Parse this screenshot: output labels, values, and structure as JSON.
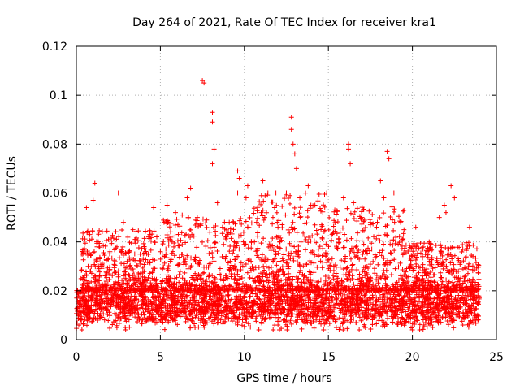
{
  "chart_data": {
    "type": "scatter",
    "title": "Day 264 of 2021, Rate Of TEC Index for receiver kra1",
    "xlabel": "GPS time / hours",
    "ylabel": "ROTI / TECUs",
    "xlim": [
      0,
      25
    ],
    "ylim": [
      0,
      0.12
    ],
    "xticks": [
      0,
      5,
      10,
      15,
      20,
      25
    ],
    "xtick_labels": [
      "0",
      "5",
      "10",
      "15",
      "20",
      "25"
    ],
    "yticks": [
      0,
      0.02,
      0.04,
      0.06,
      0.08,
      0.1,
      0.12
    ],
    "ytick_labels": [
      "0",
      "0.02",
      "0.04",
      "0.06",
      "0.08",
      "0.1",
      "0.12"
    ],
    "grid": true,
    "marker": "+",
    "marker_color": "#ff0000",
    "series": [
      {
        "points": [
          [
            0.2,
            0.012
          ],
          [
            0.5,
            0.018
          ],
          [
            0.6,
            0.054
          ],
          [
            0.8,
            0.043
          ],
          [
            1.0,
            0.057
          ],
          [
            1.1,
            0.064
          ],
          [
            1.3,
            0.04
          ],
          [
            1.5,
            0.03
          ],
          [
            2.0,
            0.036
          ],
          [
            2.5,
            0.06
          ],
          [
            2.8,
            0.048
          ],
          [
            3.5,
            0.041
          ],
          [
            3.8,
            0.035
          ],
          [
            4.3,
            0.042
          ],
          [
            4.6,
            0.054
          ],
          [
            5.0,
            0.036
          ],
          [
            5.4,
            0.055
          ],
          [
            5.9,
            0.052
          ],
          [
            6.3,
            0.051
          ],
          [
            6.6,
            0.058
          ],
          [
            6.8,
            0.062
          ],
          [
            7.2,
            0.05
          ],
          [
            7.5,
            0.106
          ],
          [
            7.6,
            0.105
          ],
          [
            8.1,
            0.093
          ],
          [
            8.1,
            0.089
          ],
          [
            8.2,
            0.078
          ],
          [
            8.1,
            0.072
          ],
          [
            8.4,
            0.056
          ],
          [
            8.7,
            0.046
          ],
          [
            9.1,
            0.048
          ],
          [
            9.4,
            0.04
          ],
          [
            9.6,
            0.069
          ],
          [
            9.7,
            0.066
          ],
          [
            9.6,
            0.06
          ],
          [
            10.2,
            0.063
          ],
          [
            10.1,
            0.058
          ],
          [
            10.6,
            0.04
          ],
          [
            11.0,
            0.052
          ],
          [
            11.1,
            0.065
          ],
          [
            11.4,
            0.06
          ],
          [
            11.7,
            0.05
          ],
          [
            12.0,
            0.046
          ],
          [
            12.5,
            0.06
          ],
          [
            12.8,
            0.091
          ],
          [
            12.8,
            0.086
          ],
          [
            12.9,
            0.08
          ],
          [
            13.0,
            0.076
          ],
          [
            13.1,
            0.07
          ],
          [
            13.3,
            0.058
          ],
          [
            13.8,
            0.063
          ],
          [
            14.2,
            0.055
          ],
          [
            14.6,
            0.047
          ],
          [
            14.9,
            0.06
          ],
          [
            15.3,
            0.044
          ],
          [
            15.9,
            0.058
          ],
          [
            16.2,
            0.08
          ],
          [
            16.2,
            0.078
          ],
          [
            16.3,
            0.072
          ],
          [
            16.5,
            0.056
          ],
          [
            17.0,
            0.05
          ],
          [
            17.5,
            0.047
          ],
          [
            18.1,
            0.065
          ],
          [
            18.3,
            0.058
          ],
          [
            18.5,
            0.077
          ],
          [
            18.6,
            0.074
          ],
          [
            18.9,
            0.06
          ],
          [
            19.5,
            0.045
          ],
          [
            20.2,
            0.046
          ],
          [
            20.6,
            0.034
          ],
          [
            21.0,
            0.04
          ],
          [
            21.6,
            0.05
          ],
          [
            21.9,
            0.055
          ],
          [
            22.0,
            0.052
          ],
          [
            22.3,
            0.063
          ],
          [
            22.5,
            0.058
          ],
          [
            23.0,
            0.037
          ],
          [
            23.4,
            0.046
          ],
          [
            23.6,
            0.034
          ],
          [
            23.9,
            0.018
          ],
          [
            1.0,
            0.02
          ],
          [
            3.0,
            0.015
          ],
          [
            5.5,
            0.022
          ],
          [
            7.0,
            0.016
          ],
          [
            9.0,
            0.018
          ],
          [
            11.5,
            0.014
          ],
          [
            13.5,
            0.02
          ],
          [
            15.5,
            0.017
          ],
          [
            17.5,
            0.015
          ],
          [
            19.0,
            0.012
          ],
          [
            20.0,
            0.004
          ],
          [
            21.5,
            0.014
          ],
          [
            23.0,
            0.006
          ],
          [
            23.6,
            0.007
          ],
          [
            0.3,
            0.008
          ],
          [
            12.0,
            0.006
          ]
        ]
      }
    ],
    "background_band": {
      "y_center": 0.014,
      "y_spread": 0.006,
      "x_range": [
        0,
        24
      ]
    },
    "spike_regions": [
      {
        "x_from": 0.3,
        "x_to": 4.8,
        "y_max": 0.045
      },
      {
        "x_from": 5.0,
        "x_to": 10.2,
        "y_max": 0.05
      },
      {
        "x_from": 10.2,
        "x_to": 14.8,
        "y_max": 0.06
      },
      {
        "x_from": 14.8,
        "x_to": 19.5,
        "y_max": 0.055
      },
      {
        "x_from": 19.5,
        "x_to": 24.0,
        "y_max": 0.04
      }
    ]
  }
}
